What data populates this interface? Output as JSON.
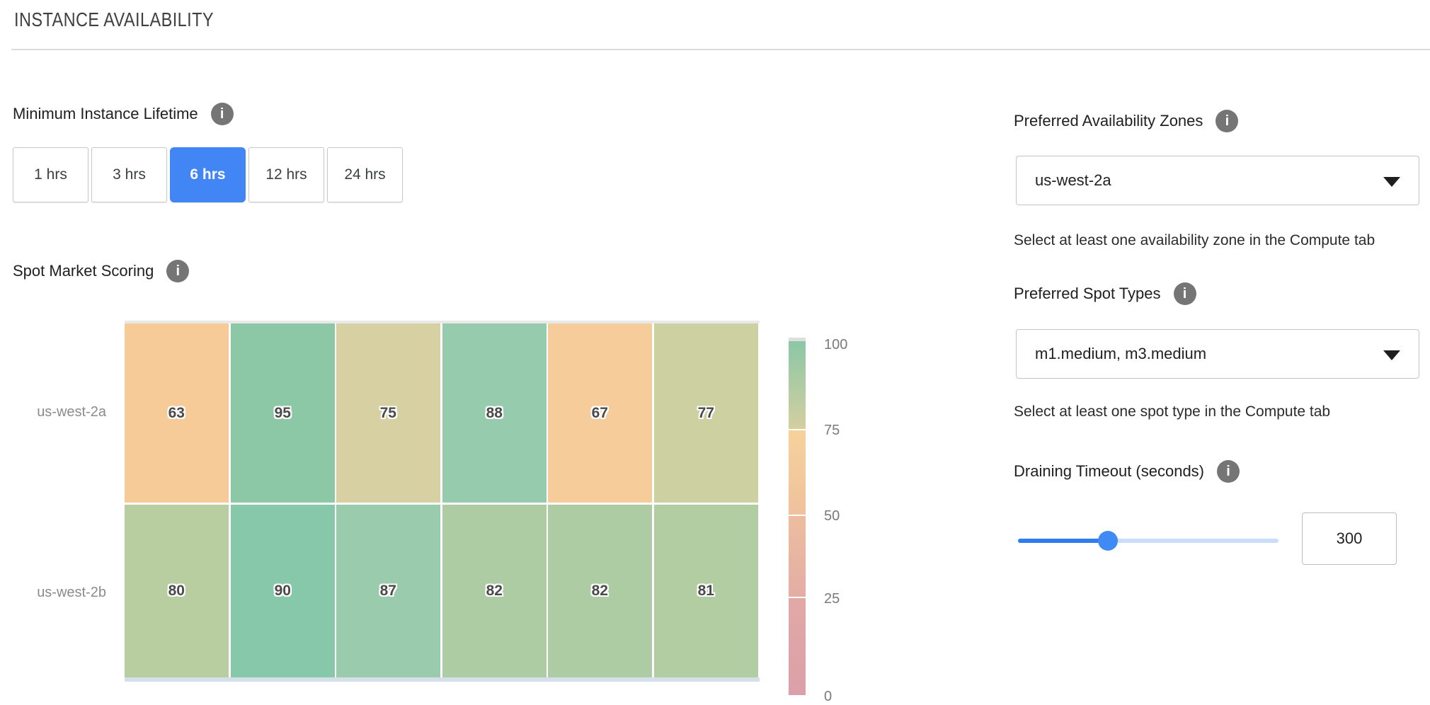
{
  "header": {
    "title": "INSTANCE AVAILABILITY"
  },
  "min_instance_lifetime": {
    "label": "Minimum Instance Lifetime",
    "info_icon": "info-icon",
    "options": [
      {
        "label": "1 hrs",
        "selected": false
      },
      {
        "label": "3 hrs",
        "selected": false
      },
      {
        "label": "6 hrs",
        "selected": true
      },
      {
        "label": "12 hrs",
        "selected": false
      },
      {
        "label": "24 hrs",
        "selected": false
      }
    ]
  },
  "spot_market_scoring": {
    "label": "Spot Market Scoring",
    "info_icon": "info-icon"
  },
  "chart_data": {
    "type": "heatmap",
    "title": "Spot Market Scoring",
    "rows": [
      "us-west-2a",
      "us-west-2b"
    ],
    "num_columns": 6,
    "column_labels_visible": false,
    "value_range": [
      0,
      100
    ],
    "series": [
      {
        "name": "us-west-2a",
        "values": [
          63,
          95,
          75,
          88,
          67,
          77
        ],
        "colors": [
          "#f6cb98",
          "#8cc8a6",
          "#d7d0a2",
          "#97cbae",
          "#f6cc9a",
          "#cdd0a0"
        ]
      },
      {
        "name": "us-west-2b",
        "values": [
          80,
          90,
          87,
          82,
          82,
          81
        ],
        "colors": [
          "#b8cda0",
          "#88c8aa",
          "#9bcbad",
          "#aecca4",
          "#aecca4",
          "#b3cda2"
        ]
      }
    ],
    "colorbar": {
      "ticks": [
        100,
        75,
        50,
        25,
        0
      ],
      "segments": [
        [
          "#8bc7a6",
          "#d4cfa0"
        ],
        [
          "#f6d29b",
          "#efc19d"
        ],
        [
          "#edbda0",
          "#e3ada4"
        ],
        [
          "#e1a9a6",
          "#dba0a9"
        ]
      ],
      "position": "right"
    }
  },
  "right_panel": {
    "preferred_azs": {
      "label": "Preferred Availability Zones",
      "info_icon": "info-icon",
      "value": "us-west-2a",
      "helper": "Select at least one availability zone in the Compute tab"
    },
    "preferred_spot_types": {
      "label": "Preferred Spot Types",
      "info_icon": "info-icon",
      "value": "m1.medium, m3.medium",
      "helper": "Select at least one spot type in the Compute tab"
    },
    "draining_timeout": {
      "label": "Draining Timeout (seconds)",
      "info_icon": "info-icon",
      "value": "300",
      "slider_percent": 34.5
    }
  },
  "colors": {
    "accent_blue": "#4285f4",
    "slider_blue": "#2e7cee",
    "slider_track": "#c9ddf9",
    "info_gray": "#757575",
    "divider": "#dcdcdc"
  }
}
